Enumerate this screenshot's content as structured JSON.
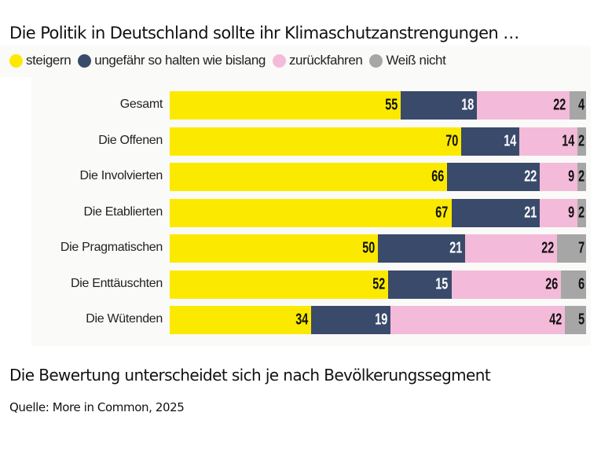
{
  "chart_data": {
    "type": "bar",
    "orientation": "horizontal",
    "stacked": true,
    "title": "Die Politik in Deutschland sollte ihr Klimaschutzanstrengungen …",
    "subtitle": "Die Bewertung unterscheidet sich je nach Bevölkerungssegment",
    "source": "Quelle: More in Common, 2025",
    "xlabel": "",
    "ylabel": "",
    "xlim": [
      0,
      100
    ],
    "grid": false,
    "legend_position": "top-left",
    "categories": [
      "Gesamt",
      "Die Offenen",
      "Die Involvierten",
      "Die Etablierten",
      "Die Pragmatischen",
      "Die Enttäuschten",
      "Die Wütenden"
    ],
    "series": [
      {
        "name": "steigern",
        "color": "#FBEA00",
        "label_color": "#111111",
        "values": [
          55,
          70,
          66,
          67,
          50,
          52,
          34
        ]
      },
      {
        "name": "ungefähr so halten wie bislang",
        "color": "#3A4A6B",
        "label_color": "#FFFFFF",
        "values": [
          18,
          14,
          22,
          21,
          21,
          15,
          19
        ]
      },
      {
        "name": "zurückfahren",
        "color": "#F3BBD9",
        "label_color": "#111111",
        "values": [
          22,
          14,
          9,
          9,
          22,
          26,
          42
        ]
      },
      {
        "name": "Weiß nicht",
        "color": "#A6A6A6",
        "label_color": "#111111",
        "values": [
          4,
          2,
          2,
          2,
          7,
          6,
          5
        ]
      }
    ]
  }
}
